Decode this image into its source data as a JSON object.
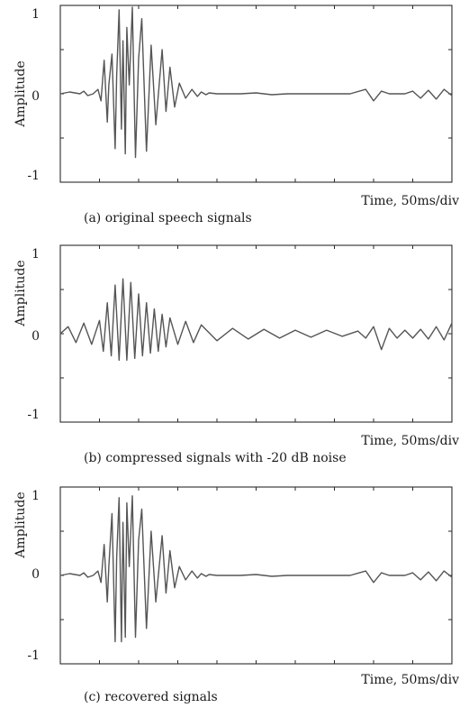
{
  "chart_data": [
    {
      "type": "line",
      "xlabel": "Time,  50ms/div",
      "ylabel": "Amplitude",
      "caption": "(a)  original speech signals",
      "ylim": [
        -1,
        1
      ],
      "yticks": [
        -1,
        0,
        1
      ],
      "x_divisions": 10,
      "xlim": [
        0,
        500
      ],
      "x_unit": "ms",
      "series": [
        {
          "x": [
            0,
            12,
            25,
            30,
            35,
            42,
            48,
            52,
            56,
            60,
            62,
            66,
            70,
            72,
            75,
            78,
            80,
            83,
            85,
            88,
            92,
            96,
            100,
            104,
            110,
            116,
            122,
            130,
            135,
            140,
            146,
            152,
            160,
            168,
            175,
            180,
            186,
            190,
            200,
            215,
            230,
            250,
            270,
            290,
            310,
            330,
            350,
            370,
            390,
            400,
            410,
            420,
            430,
            440,
            450,
            460,
            470,
            480,
            490,
            500
          ],
          "y": [
            0.0,
            0.02,
            0.0,
            0.03,
            -0.02,
            0.0,
            0.05,
            -0.08,
            0.38,
            -0.32,
            0.1,
            0.45,
            -0.62,
            0.2,
            0.95,
            -0.4,
            0.6,
            -0.68,
            0.75,
            0.1,
            0.98,
            -0.72,
            0.4,
            0.85,
            -0.65,
            0.55,
            -0.35,
            0.5,
            -0.2,
            0.3,
            -0.15,
            0.12,
            -0.05,
            0.05,
            -0.03,
            0.02,
            -0.01,
            0.01,
            0.0,
            0.0,
            0.0,
            0.01,
            -0.01,
            0.0,
            0.0,
            0.0,
            0.0,
            0.0,
            0.05,
            -0.08,
            0.03,
            0.0,
            0.0,
            0.0,
            0.03,
            -0.05,
            0.04,
            -0.06,
            0.05,
            -0.02
          ]
        }
      ]
    },
    {
      "type": "line",
      "xlabel": "Time,  50ms/div",
      "ylabel": "Amplitude",
      "caption": "(b)  compressed signals with -20 dB noise",
      "ylim": [
        -1,
        1
      ],
      "yticks": [
        -1,
        0,
        1
      ],
      "x_divisions": 10,
      "xlim": [
        0,
        500
      ],
      "x_unit": "ms",
      "series": [
        {
          "x": [
            0,
            10,
            20,
            30,
            40,
            50,
            55,
            60,
            65,
            70,
            75,
            80,
            85,
            90,
            95,
            100,
            105,
            110,
            115,
            120,
            125,
            130,
            135,
            140,
            150,
            160,
            170,
            180,
            200,
            220,
            240,
            260,
            280,
            300,
            320,
            340,
            360,
            380,
            390,
            400,
            410,
            420,
            430,
            440,
            450,
            460,
            470,
            480,
            490,
            500
          ],
          "y": [
            0.0,
            0.08,
            -0.1,
            0.12,
            -0.12,
            0.15,
            -0.2,
            0.35,
            -0.25,
            0.55,
            -0.3,
            0.62,
            -0.3,
            0.58,
            -0.28,
            0.45,
            -0.25,
            0.35,
            -0.22,
            0.28,
            -0.2,
            0.22,
            -0.15,
            0.18,
            -0.12,
            0.14,
            -0.1,
            0.1,
            -0.08,
            0.06,
            -0.06,
            0.05,
            -0.05,
            0.04,
            -0.04,
            0.04,
            -0.03,
            0.03,
            -0.05,
            0.08,
            -0.18,
            0.06,
            -0.05,
            0.04,
            -0.05,
            0.05,
            -0.06,
            0.08,
            -0.07,
            0.12
          ]
        }
      ]
    },
    {
      "type": "line",
      "xlabel": "Time,  50ms/div",
      "ylabel": "Amplitude",
      "caption": "(c)  recovered signals",
      "ylim": [
        -1,
        1
      ],
      "yticks": [
        -1,
        0,
        1
      ],
      "x_divisions": 10,
      "xlim": [
        0,
        500
      ],
      "x_unit": "ms",
      "series": [
        {
          "x": [
            0,
            12,
            25,
            30,
            35,
            42,
            48,
            52,
            56,
            60,
            62,
            66,
            70,
            72,
            75,
            78,
            80,
            83,
            85,
            88,
            92,
            96,
            100,
            104,
            110,
            116,
            122,
            130,
            135,
            140,
            146,
            152,
            160,
            168,
            175,
            180,
            186,
            190,
            200,
            215,
            230,
            250,
            270,
            290,
            310,
            330,
            350,
            370,
            390,
            400,
            410,
            420,
            430,
            440,
            450,
            460,
            470,
            480,
            490,
            500
          ],
          "y": [
            0.0,
            0.02,
            0.0,
            0.03,
            -0.02,
            0.0,
            0.05,
            -0.08,
            0.35,
            -0.3,
            0.1,
            0.7,
            -0.75,
            0.2,
            0.88,
            -0.75,
            0.6,
            -0.7,
            0.82,
            0.1,
            0.9,
            -0.7,
            0.4,
            0.75,
            -0.6,
            0.5,
            -0.3,
            0.45,
            -0.2,
            0.28,
            -0.14,
            0.1,
            -0.05,
            0.05,
            -0.03,
            0.02,
            -0.01,
            0.01,
            0.0,
            0.0,
            0.0,
            0.01,
            -0.01,
            0.0,
            0.0,
            0.0,
            0.0,
            0.0,
            0.05,
            -0.08,
            0.03,
            0.0,
            0.0,
            0.0,
            0.03,
            -0.05,
            0.04,
            -0.06,
            0.05,
            -0.02
          ]
        }
      ]
    }
  ]
}
